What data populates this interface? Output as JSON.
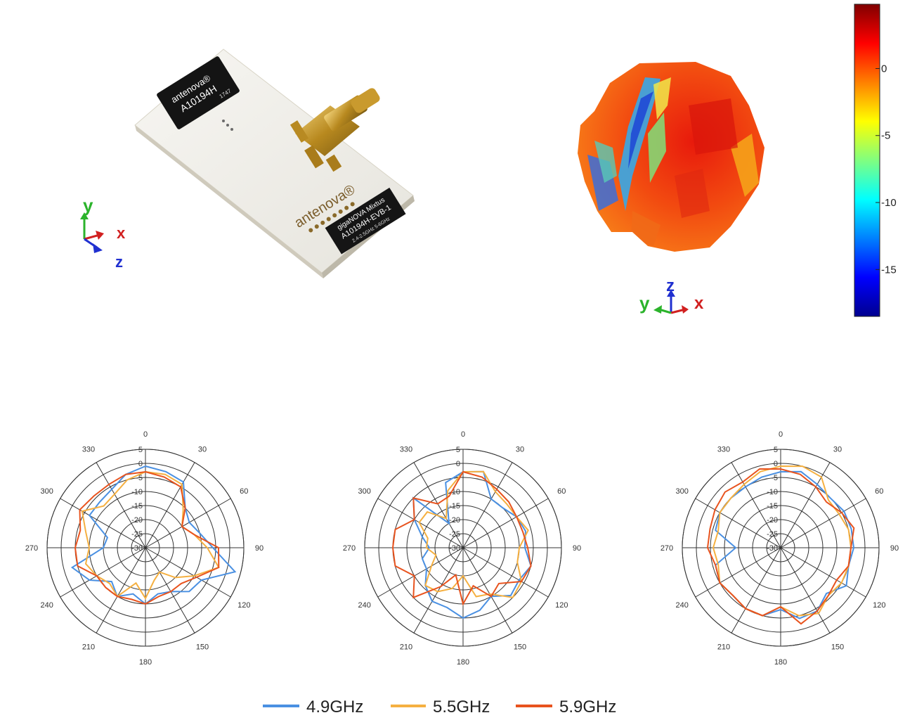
{
  "board": {
    "chip_brand": "antenova®",
    "chip_part": "A10194H",
    "chip_code": "1747",
    "board_brand": "antenova®",
    "board_product": "gigaNOVA  Mixtus",
    "board_part": "A10194H-EVB-1",
    "board_freq": "2.4-2.5GHz  5-6GHz"
  },
  "axes_left": {
    "y": "y",
    "x": "x",
    "z": "z"
  },
  "axes_mid": {
    "y": "y",
    "z": "z",
    "x": "x"
  },
  "colorbar": {
    "ticks": [
      {
        "label": "0",
        "value": 0
      },
      {
        "label": "-5",
        "value": -5
      },
      {
        "label": "-10",
        "value": -10
      },
      {
        "label": "-15",
        "value": -15
      }
    ],
    "min": -18.5,
    "max": 4.8,
    "colors": [
      "#00008f",
      "#0000ff",
      "#0080ff",
      "#00ffff",
      "#80ff80",
      "#ffff00",
      "#ff8000",
      "#ff0000",
      "#800000"
    ]
  },
  "series_colors": [
    "#4a90e2",
    "#f5b041",
    "#e8531e"
  ],
  "chart_data": [
    {
      "type": "line",
      "coordinate": "polar",
      "angle_ticks": [
        "0",
        "30",
        "60",
        "90",
        "120",
        "150",
        "180",
        "210",
        "240",
        "270",
        "300",
        "330"
      ],
      "radial_ticks": [
        "5",
        "0",
        "-5",
        "-10",
        "-15",
        "-20",
        "-25",
        "-30"
      ],
      "rlim": [
        -30,
        5
      ],
      "theta": [
        0,
        15,
        30,
        45,
        60,
        75,
        90,
        105,
        120,
        135,
        150,
        165,
        180,
        195,
        210,
        225,
        240,
        255,
        270,
        285,
        300,
        315,
        330,
        345
      ],
      "series": [
        {
          "name": "4.9GHz",
          "r": [
            -1,
            -2,
            -3,
            -10,
            -12,
            -10,
            -6,
            3,
            -7,
            -8,
            -12,
            -13,
            -10,
            -13,
            -10,
            -13,
            -7,
            -3,
            -15,
            -16,
            -7,
            -7,
            -6,
            -3
          ]
        },
        {
          "name": "5.5GHz",
          "r": [
            -3,
            -3,
            -4,
            -11,
            -15,
            -12,
            -8,
            -3,
            -10,
            -15,
            -20,
            -18,
            -12,
            -17,
            -10,
            -12,
            -10,
            -8,
            -10,
            -8,
            -4,
            -9,
            -8,
            -5
          ]
        },
        {
          "name": "5.9GHz",
          "r": [
            -3,
            -4,
            -5,
            -10,
            -15,
            -12,
            -4,
            -3,
            -9,
            -12,
            -12,
            -12,
            -10,
            -11,
            -10,
            -10,
            -10,
            -5,
            -5,
            -6,
            -3,
            -4,
            -4,
            -3
          ]
        }
      ]
    },
    {
      "type": "line",
      "coordinate": "polar",
      "angle_ticks": [
        "0",
        "30",
        "60",
        "90",
        "120",
        "150",
        "180",
        "210",
        "240",
        "270",
        "300",
        "330"
      ],
      "radial_ticks": [
        "5",
        "0",
        "-5",
        "-10",
        "-15",
        "-20",
        "-25",
        "-30"
      ],
      "rlim": [
        -30,
        5
      ],
      "theta": [
        0,
        15,
        30,
        45,
        60,
        75,
        90,
        105,
        120,
        135,
        150,
        165,
        180,
        195,
        210,
        225,
        240,
        255,
        270,
        285,
        300,
        315,
        330,
        345
      ],
      "series": [
        {
          "name": "4.9GHz",
          "r": [
            -3,
            -2,
            -10,
            -10,
            -8,
            -7,
            -8,
            -5,
            -7,
            -6,
            -10,
            -7,
            -5,
            -8,
            -8,
            -11,
            -15,
            -15,
            -18,
            -15,
            -10,
            -5,
            -20,
            -6
          ]
        },
        {
          "name": "5.5GHz",
          "r": [
            -3,
            -2,
            -7,
            -8,
            -8,
            -6,
            -10,
            -10,
            -6,
            -5,
            -11,
            -12,
            -20,
            -15,
            -12,
            -11,
            -17,
            -20,
            -17,
            -17,
            -12,
            -12,
            -18,
            -9
          ]
        },
        {
          "name": "5.9GHz",
          "r": [
            -3,
            -4,
            -6,
            -7,
            -8,
            -8,
            -7,
            -5,
            -6,
            -12,
            -10,
            -16,
            -10,
            -20,
            -14,
            -5,
            -10,
            -5,
            -5,
            -5,
            -10,
            -5,
            -12,
            -11
          ]
        }
      ]
    },
    {
      "type": "line",
      "coordinate": "polar",
      "angle_ticks": [
        "0",
        "30",
        "60",
        "90",
        "120",
        "150",
        "180",
        "210",
        "240",
        "270",
        "300",
        "330"
      ],
      "radial_ticks": [
        "5",
        "0",
        "-5",
        "-10",
        "-15",
        "-20",
        "-25",
        "-30"
      ],
      "rlim": [
        -30,
        5
      ],
      "theta": [
        0,
        15,
        30,
        45,
        60,
        75,
        90,
        105,
        120,
        135,
        150,
        165,
        180,
        195,
        210,
        225,
        240,
        255,
        270,
        285,
        300,
        315,
        330,
        345
      ],
      "series": [
        {
          "name": "4.9GHz",
          "r": [
            -3,
            -2,
            -4,
            -5,
            -4,
            -4,
            -4,
            -5,
            -3,
            -7,
            -4,
            -4,
            -8,
            -5,
            -5,
            -6,
            -5,
            -6,
            -14,
            -6,
            -5,
            -5,
            -5,
            -4
          ]
        },
        {
          "name": "5.5GHz",
          "r": [
            -1,
            0,
            -1,
            -6,
            -6,
            -5,
            -5,
            -5,
            -5,
            -6,
            -3,
            -5,
            -9,
            -5,
            -5,
            -6,
            -5,
            -7,
            -6,
            -7,
            -5,
            -5,
            -4,
            -2
          ]
        },
        {
          "name": "5.9GHz",
          "r": [
            -2,
            -3,
            -5,
            -7,
            -5,
            -3,
            -5,
            -5,
            -7,
            -6,
            -4,
            -2,
            -9,
            -5,
            -5,
            -6,
            -5,
            -6,
            -4,
            -4,
            -3,
            -2,
            -3,
            -1
          ]
        }
      ]
    }
  ],
  "legend": {
    "items": [
      {
        "name": "4.9GHz"
      },
      {
        "name": "5.5GHz"
      },
      {
        "name": "5.9GHz"
      }
    ]
  }
}
